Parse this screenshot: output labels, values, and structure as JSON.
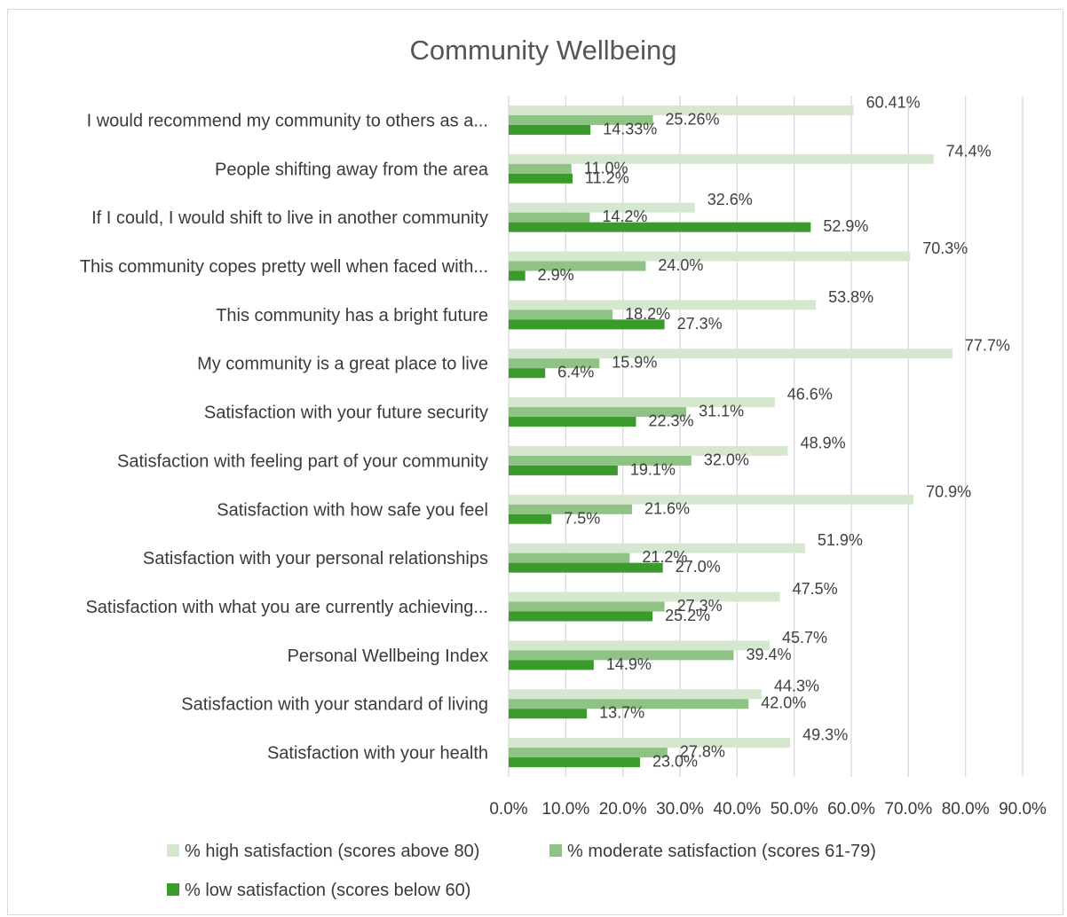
{
  "chart_data": {
    "type": "bar",
    "orientation": "horizontal",
    "title": "Community Wellbeing",
    "categories": [
      "I would recommend my community to others as a...",
      "People shifting away from the area",
      "If I could, I would shift to live in another community",
      "This community copes pretty well when faced with...",
      "This community has a bright future",
      "My community is a great place to live",
      "Satisfaction with your future security",
      "Satisfaction with feeling part of your community",
      "Satisfaction with how safe you feel",
      "Satisfaction with your personal relationships",
      "Satisfaction with what you are currently achieving...",
      "Personal Wellbeing Index",
      "Satisfaction with your standard of living",
      "Satisfaction with your health"
    ],
    "series": [
      {
        "name": "% high satisfaction (scores above 80)",
        "color": "#d5e8cf",
        "values": [
          60.41,
          74.4,
          32.6,
          70.3,
          53.8,
          77.7,
          46.6,
          48.9,
          70.9,
          51.9,
          47.5,
          45.7,
          44.3,
          49.3
        ],
        "labels": [
          "60.41%",
          "74.4%",
          "32.6%",
          "70.3%",
          "53.8%",
          "77.7%",
          "46.6%",
          "48.9%",
          "70.9%",
          "51.9%",
          "47.5%",
          "45.7%",
          "44.3%",
          "49.3%"
        ]
      },
      {
        "name": "% moderate satisfaction (scores 61-79)",
        "color": "#8fc285",
        "values": [
          25.26,
          11.0,
          14.2,
          24.0,
          18.2,
          15.9,
          31.1,
          32.0,
          21.6,
          21.2,
          27.3,
          39.4,
          42.0,
          27.8
        ],
        "labels": [
          "25.26%",
          "11.0%",
          "14.2%",
          "24.0%",
          "18.2%",
          "15.9%",
          "31.1%",
          "32.0%",
          "21.6%",
          "21.2%",
          "27.3%",
          "39.4%",
          "42.0%",
          "27.8%"
        ]
      },
      {
        "name": "% low satisfaction (scores below 60)",
        "color": "#3a9a2c",
        "values": [
          14.33,
          11.2,
          52.9,
          2.9,
          27.3,
          6.4,
          22.3,
          19.1,
          7.5,
          27.0,
          25.2,
          14.9,
          13.7,
          23.0
        ],
        "labels": [
          "14.33%",
          "11.2%",
          "52.9%",
          "2.9%",
          "27.3%",
          "6.4%",
          "22.3%",
          "19.1%",
          "7.5%",
          "27.0%",
          "25.2%",
          "14.9%",
          "13.7%",
          "23.0%"
        ]
      }
    ],
    "xlim": [
      0,
      90
    ],
    "xticks": [
      "0.0%",
      "10.0%",
      "20.0%",
      "30.0%",
      "40.0%",
      "50.0%",
      "60.0%",
      "70.0%",
      "80.0%",
      "90.0%"
    ],
    "grid": true,
    "legend_position": "bottom"
  }
}
